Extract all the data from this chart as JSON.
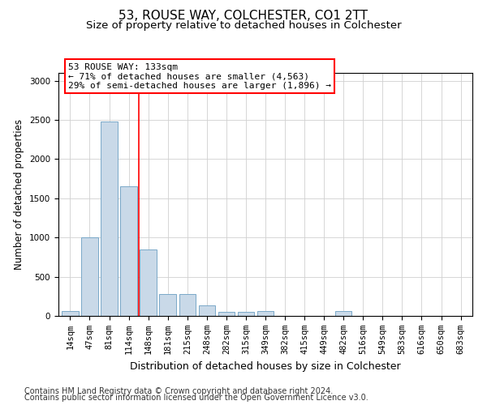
{
  "title1": "53, ROUSE WAY, COLCHESTER, CO1 2TT",
  "title2": "Size of property relative to detached houses in Colchester",
  "xlabel": "Distribution of detached houses by size in Colchester",
  "ylabel": "Number of detached properties",
  "categories": [
    "14sqm",
    "47sqm",
    "81sqm",
    "114sqm",
    "148sqm",
    "181sqm",
    "215sqm",
    "248sqm",
    "282sqm",
    "315sqm",
    "349sqm",
    "382sqm",
    "415sqm",
    "449sqm",
    "482sqm",
    "516sqm",
    "549sqm",
    "583sqm",
    "616sqm",
    "650sqm",
    "683sqm"
  ],
  "values": [
    60,
    1000,
    2480,
    1650,
    850,
    280,
    280,
    130,
    50,
    50,
    65,
    5,
    5,
    5,
    65,
    5,
    5,
    5,
    5,
    5,
    5
  ],
  "bar_color": "#c9d9e8",
  "bar_edge_color": "#7aa8c8",
  "vline_color": "red",
  "vline_pos": 3.5,
  "annotation_line1": "53 ROUSE WAY: 133sqm",
  "annotation_line2": "← 71% of detached houses are smaller (4,563)",
  "annotation_line3": "29% of semi-detached houses are larger (1,896) →",
  "annotation_box_facecolor": "white",
  "annotation_box_edgecolor": "red",
  "ylim": [
    0,
    3100
  ],
  "yticks": [
    0,
    500,
    1000,
    1500,
    2000,
    2500,
    3000
  ],
  "footer1": "Contains HM Land Registry data © Crown copyright and database right 2024.",
  "footer2": "Contains public sector information licensed under the Open Government Licence v3.0.",
  "title1_fontsize": 11,
  "title2_fontsize": 9.5,
  "xlabel_fontsize": 9,
  "ylabel_fontsize": 8.5,
  "tick_fontsize": 7.5,
  "annotation_fontsize": 8,
  "footer_fontsize": 7
}
